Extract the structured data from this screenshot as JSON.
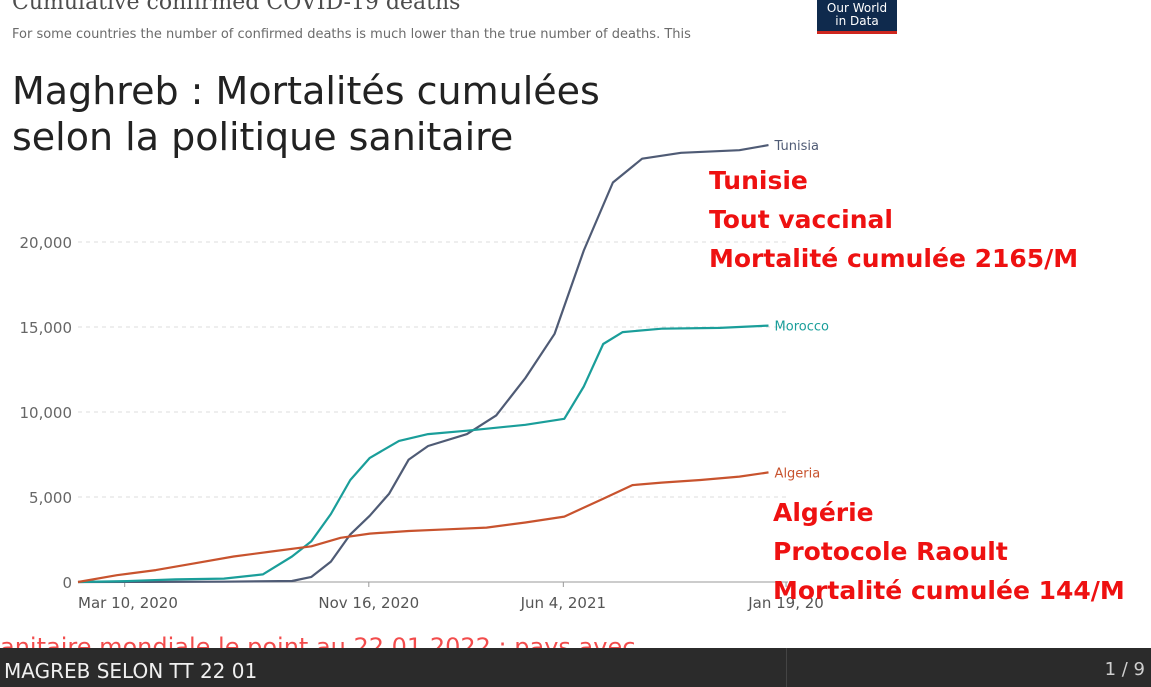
{
  "header": {
    "owid_title": "Cumulative confirmed COVID-19 deaths",
    "owid_subtitle": "For some countries the number of confirmed deaths is much lower than the true number of deaths. This",
    "logo_line1": "Our World",
    "logo_line2": "in Data"
  },
  "title": {
    "line1": "Maghreb : Mortalités cumulées",
    "line2": "selon la politique sanitaire"
  },
  "annotations": {
    "tunisia": [
      "Tunisie",
      "Tout vaccinal",
      "Mortalité cumulée 2165/M"
    ],
    "algeria": [
      "Algérie",
      "Protocole Raoult",
      "Mortalité cumulée 144/M"
    ]
  },
  "caption": "anitaire mondiale le point au 22 01 2022 : pays avec",
  "viewer": {
    "file_title": "MAGREB SELON TT 22 01",
    "page": "1 / 9"
  },
  "colors": {
    "tunisia": "#4f5b75",
    "morocco": "#1a9e9a",
    "algeria": "#c8532e",
    "annotation": "#ee1111"
  },
  "chart_data": {
    "type": "line",
    "x_format": "days since first data, 2020-01-22",
    "x_tick_labels": [
      "Mar 10, 2020",
      "Nov 16, 2020",
      "Jun 4, 2021",
      "Jan 19, 20"
    ],
    "x_ticks": [
      48,
      299,
      499,
      728
    ],
    "xlim": [
      0,
      730
    ],
    "y_ticks": [
      0,
      5000,
      10000,
      15000,
      20000
    ],
    "y_tick_labels": [
      "0",
      "5,000",
      "10,000",
      "15,000",
      "20,000"
    ],
    "ylim": [
      0,
      26000
    ],
    "grid": true,
    "series": [
      {
        "name": "Tunisia",
        "color": "#4f5b75",
        "points": [
          [
            0,
            0
          ],
          [
            70,
            5
          ],
          [
            150,
            20
          ],
          [
            220,
            60
          ],
          [
            240,
            300
          ],
          [
            260,
            1200
          ],
          [
            280,
            2800
          ],
          [
            300,
            3900
          ],
          [
            320,
            5200
          ],
          [
            340,
            7200
          ],
          [
            360,
            8000
          ],
          [
            400,
            8700
          ],
          [
            430,
            9800
          ],
          [
            460,
            12000
          ],
          [
            490,
            14600
          ],
          [
            520,
            19500
          ],
          [
            550,
            23500
          ],
          [
            580,
            24900
          ],
          [
            620,
            25250
          ],
          [
            680,
            25400
          ],
          [
            710,
            25700
          ]
        ]
      },
      {
        "name": "Morocco",
        "color": "#1a9e9a",
        "points": [
          [
            0,
            0
          ],
          [
            50,
            50
          ],
          [
            100,
            150
          ],
          [
            150,
            200
          ],
          [
            190,
            450
          ],
          [
            220,
            1500
          ],
          [
            240,
            2400
          ],
          [
            260,
            4000
          ],
          [
            280,
            6000
          ],
          [
            300,
            7300
          ],
          [
            330,
            8300
          ],
          [
            360,
            8700
          ],
          [
            400,
            8900
          ],
          [
            460,
            9250
          ],
          [
            500,
            9600
          ],
          [
            520,
            11500
          ],
          [
            540,
            14000
          ],
          [
            560,
            14700
          ],
          [
            600,
            14900
          ],
          [
            660,
            14950
          ],
          [
            710,
            15080
          ]
        ]
      },
      {
        "name": "Algeria",
        "color": "#c8532e",
        "points": [
          [
            0,
            0
          ],
          [
            40,
            400
          ],
          [
            80,
            700
          ],
          [
            120,
            1100
          ],
          [
            160,
            1500
          ],
          [
            200,
            1800
          ],
          [
            240,
            2100
          ],
          [
            270,
            2600
          ],
          [
            300,
            2850
          ],
          [
            340,
            3000
          ],
          [
            380,
            3100
          ],
          [
            420,
            3200
          ],
          [
            460,
            3500
          ],
          [
            500,
            3850
          ],
          [
            540,
            4900
          ],
          [
            570,
            5700
          ],
          [
            600,
            5850
          ],
          [
            640,
            6000
          ],
          [
            680,
            6200
          ],
          [
            710,
            6450
          ]
        ]
      }
    ]
  }
}
